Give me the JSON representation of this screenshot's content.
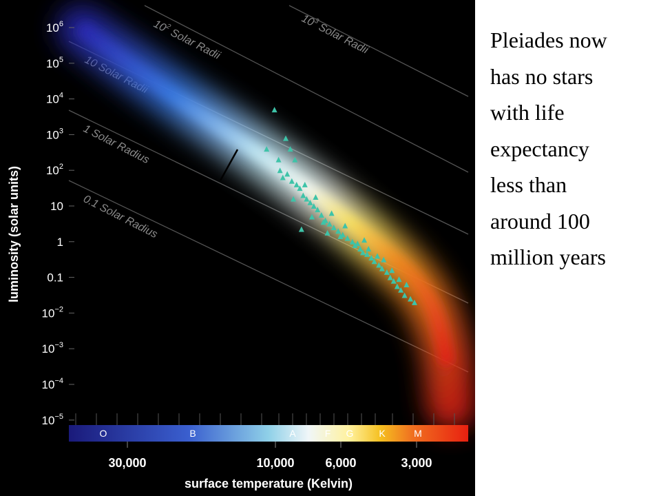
{
  "chart_data": {
    "type": "scatter",
    "title": "",
    "xlabel": "surface temperature (Kelvin)",
    "ylabel": "luminosity (solar units)",
    "x_scale": "log-reversed",
    "y_scale": "log",
    "xlim": [
      40000,
      2500
    ],
    "ylim": [
      1e-05,
      1000000
    ],
    "x_ticks": [
      {
        "value": 30000,
        "label": "30,000"
      },
      {
        "value": 10000,
        "label": "10,000"
      },
      {
        "value": 6000,
        "label": "6,000"
      },
      {
        "value": 3000,
        "label": "3,000"
      }
    ],
    "y_ticks": [
      {
        "exp": 6,
        "base": "10",
        "sup": "6"
      },
      {
        "exp": 5,
        "base": "10",
        "sup": "5"
      },
      {
        "exp": 4,
        "base": "10",
        "sup": "4"
      },
      {
        "exp": 3,
        "base": "10",
        "sup": "3"
      },
      {
        "exp": 2,
        "base": "10",
        "sup": "2"
      },
      {
        "exp": 1,
        "base": "10",
        "sup": ""
      },
      {
        "exp": 0,
        "base": "1",
        "sup": ""
      },
      {
        "exp": -1,
        "base": "0.1",
        "sup": ""
      },
      {
        "exp": -2,
        "base": "10",
        "sup": "−2"
      },
      {
        "exp": -3,
        "base": "10",
        "sup": "−3"
      },
      {
        "exp": -4,
        "base": "10",
        "sup": "−4"
      },
      {
        "exp": -5,
        "base": "10",
        "sup": "−5"
      }
    ],
    "spectral_classes": [
      "O",
      "B",
      "A",
      "F",
      "G",
      "K",
      "M"
    ],
    "radius_lines": [
      {
        "base": "10",
        "sup": "3",
        "rest": " Solar Radii"
      },
      {
        "base": "10",
        "sup": "2",
        "rest": " Solar Radii"
      },
      {
        "base": "10 Solar Radii",
        "sup": "",
        "rest": ""
      },
      {
        "base": "1 Solar Radius",
        "sup": "",
        "rest": ""
      },
      {
        "base": "0.1 Solar Radius",
        "sup": "",
        "rest": ""
      }
    ],
    "series": [
      {
        "marker": "triangle",
        "color": "#3ec3a8",
        "points": [
          [
            9300,
            3.7
          ],
          [
            9900,
            2.6
          ],
          [
            9000,
            2.3
          ],
          [
            8500,
            2.9
          ],
          [
            8200,
            2.6
          ],
          [
            7900,
            2.3
          ],
          [
            8900,
            2.0
          ],
          [
            8700,
            1.8
          ],
          [
            8400,
            1.9
          ],
          [
            8100,
            1.7
          ],
          [
            7800,
            1.6
          ],
          [
            7600,
            1.5
          ],
          [
            7400,
            1.3
          ],
          [
            7200,
            1.2
          ],
          [
            7000,
            1.1
          ],
          [
            6800,
            1.0
          ],
          [
            6600,
            0.9
          ],
          [
            6400,
            0.75
          ],
          [
            6200,
            0.6
          ],
          [
            6000,
            0.5
          ],
          [
            5800,
            0.4
          ],
          [
            5600,
            0.3
          ],
          [
            5400,
            0.2
          ],
          [
            5200,
            0.1
          ],
          [
            5000,
            0.0
          ],
          [
            4900,
            -0.1
          ],
          [
            4700,
            -0.2
          ],
          [
            4600,
            -0.3
          ],
          [
            4450,
            -0.35
          ],
          [
            4300,
            -0.45
          ],
          [
            4200,
            -0.55
          ],
          [
            4050,
            -0.65
          ],
          [
            3950,
            -0.75
          ],
          [
            3800,
            -0.85
          ],
          [
            3700,
            -1.0
          ],
          [
            3600,
            -1.1
          ],
          [
            3500,
            -1.25
          ],
          [
            3400,
            -1.35
          ],
          [
            3300,
            -1.5
          ],
          [
            3150,
            -1.6
          ],
          [
            3050,
            -1.7
          ],
          [
            7500,
            0.35
          ],
          [
            6900,
            0.7
          ],
          [
            6300,
            0.55
          ],
          [
            5900,
            0.8
          ],
          [
            5500,
            0.15
          ],
          [
            5300,
            0.45
          ],
          [
            4800,
            -0.05
          ],
          [
            4550,
            0.05
          ],
          [
            4400,
            -0.2
          ],
          [
            4100,
            -0.4
          ],
          [
            3900,
            -0.5
          ],
          [
            3650,
            -0.8
          ],
          [
            3450,
            -1.05
          ],
          [
            3250,
            -1.2
          ],
          [
            8000,
            1.2
          ],
          [
            7300,
            1.6
          ],
          [
            6700,
            1.25
          ],
          [
            6100,
            0.25
          ]
        ]
      }
    ],
    "annotations": [
      "Pleiades now has no stars with life expectancy less than around 100 million years"
    ]
  },
  "caption_lines": [
    "Pleiades now",
    "has no stars",
    "with life",
    "expectancy",
    "less than",
    "around 100",
    "million years"
  ]
}
